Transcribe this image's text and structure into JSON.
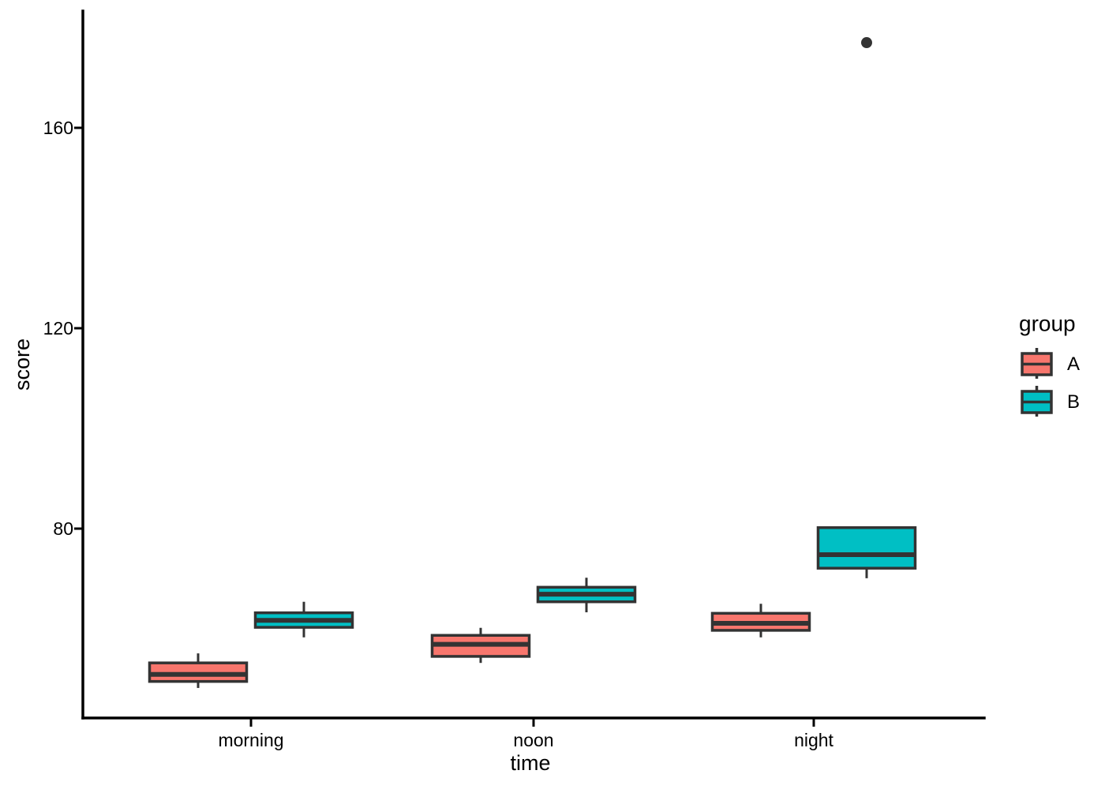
{
  "chart_data": {
    "type": "boxplot",
    "title": "",
    "xlabel": "time",
    "ylabel": "score",
    "categories": [
      "morning",
      "noon",
      "night"
    ],
    "y_ticks": [
      80,
      120,
      160
    ],
    "ylim": [
      42,
      183
    ],
    "grid": false,
    "background": "#ffffff",
    "colors": {
      "axis": "#000000",
      "box_stroke": "#333333",
      "outlier": "#333333"
    },
    "legend": {
      "title": "group",
      "position": "right",
      "entries": [
        {
          "label": "A",
          "fill": "#F8766D"
        },
        {
          "label": "B",
          "fill": "#00BFC4"
        }
      ]
    },
    "series": [
      {
        "name": "A",
        "fill": "#F8766D",
        "boxes": [
          {
            "category": "morning",
            "whisker_low": 48.2,
            "q1": 49.5,
            "median": 50.9,
            "q3": 53.2,
            "whisker_high": 55.1,
            "outliers": []
          },
          {
            "category": "noon",
            "whisker_low": 53.2,
            "q1": 54.5,
            "median": 56.9,
            "q3": 58.7,
            "whisker_high": 60.2,
            "outliers": []
          },
          {
            "category": "night",
            "whisker_low": 58.3,
            "q1": 59.7,
            "median": 61.1,
            "q3": 63.1,
            "whisker_high": 65.0,
            "outliers": []
          }
        ]
      },
      {
        "name": "B",
        "fill": "#00BFC4",
        "boxes": [
          {
            "category": "morning",
            "whisker_low": 58.3,
            "q1": 60.3,
            "median": 61.7,
            "q3": 63.2,
            "whisker_high": 65.4,
            "outliers": []
          },
          {
            "category": "noon",
            "whisker_low": 63.3,
            "q1": 65.4,
            "median": 66.9,
            "q3": 68.3,
            "whisker_high": 70.2,
            "outliers": []
          },
          {
            "category": "night",
            "whisker_low": 70.1,
            "q1": 72.1,
            "median": 74.8,
            "q3": 80.2,
            "whisker_high": null,
            "outliers": [
              177
            ]
          }
        ]
      }
    ]
  }
}
